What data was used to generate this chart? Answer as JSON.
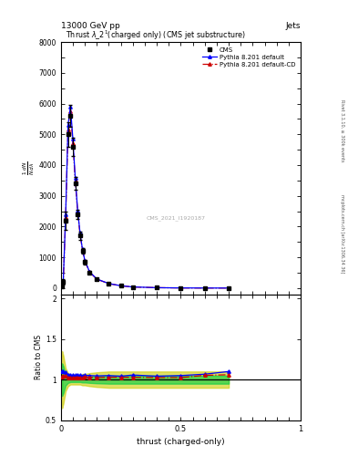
{
  "title_top": "13000 GeV pp",
  "title_right": "Jets",
  "plot_title": "Thrust $\\lambda\\_2^1$(charged only) (CMS jet substructure)",
  "xlabel": "thrust (charged-only)",
  "right_label_top": "Rivet 3.1.10, ≥ 300k events",
  "right_label_bottom": "mcplots.cern.ch [arXiv:1306.34 36]",
  "watermark": "CMS_2021_I1920187",
  "xlim": [
    0,
    1
  ],
  "ylim_main": [
    -200,
    8000
  ],
  "ylim_ratio": [
    0.5,
    2.05
  ],
  "yticks_main": [
    0,
    1000,
    2000,
    3000,
    4000,
    5000,
    6000,
    7000,
    8000
  ],
  "yticks_ratio": [
    0.5,
    1.0,
    1.5,
    2.0
  ],
  "cms_x": [
    0.005,
    0.01,
    0.02,
    0.03,
    0.04,
    0.05,
    0.06,
    0.07,
    0.08,
    0.09,
    0.1,
    0.12,
    0.15,
    0.2,
    0.25,
    0.3,
    0.4,
    0.5,
    0.6,
    0.7
  ],
  "cms_y": [
    50,
    200,
    2200,
    5000,
    5600,
    4600,
    3400,
    2400,
    1700,
    1200,
    850,
    500,
    280,
    140,
    72,
    35,
    12,
    4,
    1.5,
    0.5
  ],
  "cms_yerr": [
    40,
    100,
    300,
    400,
    350,
    300,
    200,
    150,
    120,
    90,
    70,
    45,
    25,
    12,
    8,
    4,
    2,
    1,
    0.5,
    0.3
  ],
  "py_def_x": [
    0.005,
    0.01,
    0.02,
    0.03,
    0.04,
    0.05,
    0.06,
    0.07,
    0.08,
    0.09,
    0.1,
    0.12,
    0.15,
    0.2,
    0.25,
    0.3,
    0.4,
    0.5,
    0.6,
    0.7
  ],
  "py_def_y": [
    55,
    220,
    2400,
    5300,
    5900,
    4850,
    3580,
    2530,
    1790,
    1260,
    895,
    525,
    293,
    147,
    75,
    37,
    12.5,
    4.2,
    1.6,
    0.55
  ],
  "py_cd_x": [
    0.005,
    0.01,
    0.02,
    0.03,
    0.04,
    0.05,
    0.06,
    0.07,
    0.08,
    0.09,
    0.1,
    0.12,
    0.15,
    0.2,
    0.25,
    0.3,
    0.4,
    0.5,
    0.6,
    0.7
  ],
  "py_cd_y": [
    52,
    210,
    2300,
    5150,
    5750,
    4720,
    3490,
    2470,
    1750,
    1235,
    878,
    515,
    287,
    144,
    74,
    36,
    12.3,
    4.1,
    1.58,
    0.53
  ],
  "ratio_def_y": [
    1.1,
    1.1,
    1.09,
    1.06,
    1.054,
    1.054,
    1.053,
    1.054,
    1.053,
    1.05,
    1.053,
    1.05,
    1.046,
    1.05,
    1.042,
    1.057,
    1.042,
    1.05,
    1.067,
    1.1
  ],
  "ratio_cd_y": [
    1.04,
    1.05,
    1.045,
    1.03,
    1.027,
    1.026,
    1.026,
    1.029,
    1.029,
    1.029,
    1.033,
    1.03,
    1.025,
    1.029,
    1.028,
    1.029,
    1.025,
    1.025,
    1.053,
    1.06
  ],
  "band_yellow_lo": [
    0.65,
    0.7,
    0.86,
    0.92,
    0.94,
    0.94,
    0.94,
    0.94,
    0.94,
    0.93,
    0.93,
    0.92,
    0.91,
    0.9,
    0.9,
    0.9,
    0.9,
    0.9,
    0.9,
    0.9
  ],
  "band_yellow_hi": [
    1.35,
    1.3,
    1.14,
    1.08,
    1.06,
    1.06,
    1.06,
    1.06,
    1.06,
    1.07,
    1.07,
    1.08,
    1.09,
    1.1,
    1.1,
    1.1,
    1.1,
    1.1,
    1.1,
    1.1
  ],
  "band_green_lo": [
    0.8,
    0.83,
    0.93,
    0.96,
    0.97,
    0.97,
    0.97,
    0.97,
    0.97,
    0.965,
    0.965,
    0.96,
    0.955,
    0.95,
    0.95,
    0.95,
    0.95,
    0.95,
    0.95,
    0.95
  ],
  "band_green_hi": [
    1.2,
    1.17,
    1.07,
    1.04,
    1.03,
    1.03,
    1.03,
    1.03,
    1.03,
    1.035,
    1.035,
    1.04,
    1.045,
    1.05,
    1.05,
    1.05,
    1.05,
    1.05,
    1.05,
    1.05
  ],
  "color_cms": "#000000",
  "color_py_def": "#0000ff",
  "color_py_cd": "#cc0000",
  "color_green": "#00cc44",
  "color_yellow": "#cccc00",
  "bg": "#ffffff"
}
